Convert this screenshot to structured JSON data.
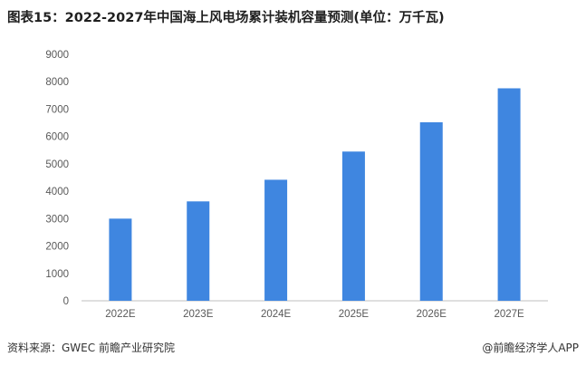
{
  "title": "图表15：2022-2027年中国海上风电场累计装机容量预测(单位：万千瓦)",
  "source": "资料来源：GWEC 前瞻产业研究院",
  "credit": "@前瞻经济学人APP",
  "colors": {
    "bar": "#3f86e0",
    "axis": "#bfbfbf",
    "tick_text": "#595959"
  },
  "chart_data": {
    "type": "bar",
    "categories": [
      "2022E",
      "2023E",
      "2024E",
      "2025E",
      "2026E",
      "2027E"
    ],
    "values": [
      3000,
      3630,
      4420,
      5450,
      6520,
      7760
    ],
    "ylim": [
      0,
      9000
    ],
    "yticks": [
      0,
      1000,
      2000,
      3000,
      4000,
      5000,
      6000,
      7000,
      8000,
      9000
    ],
    "grid": false,
    "legend": "none"
  }
}
